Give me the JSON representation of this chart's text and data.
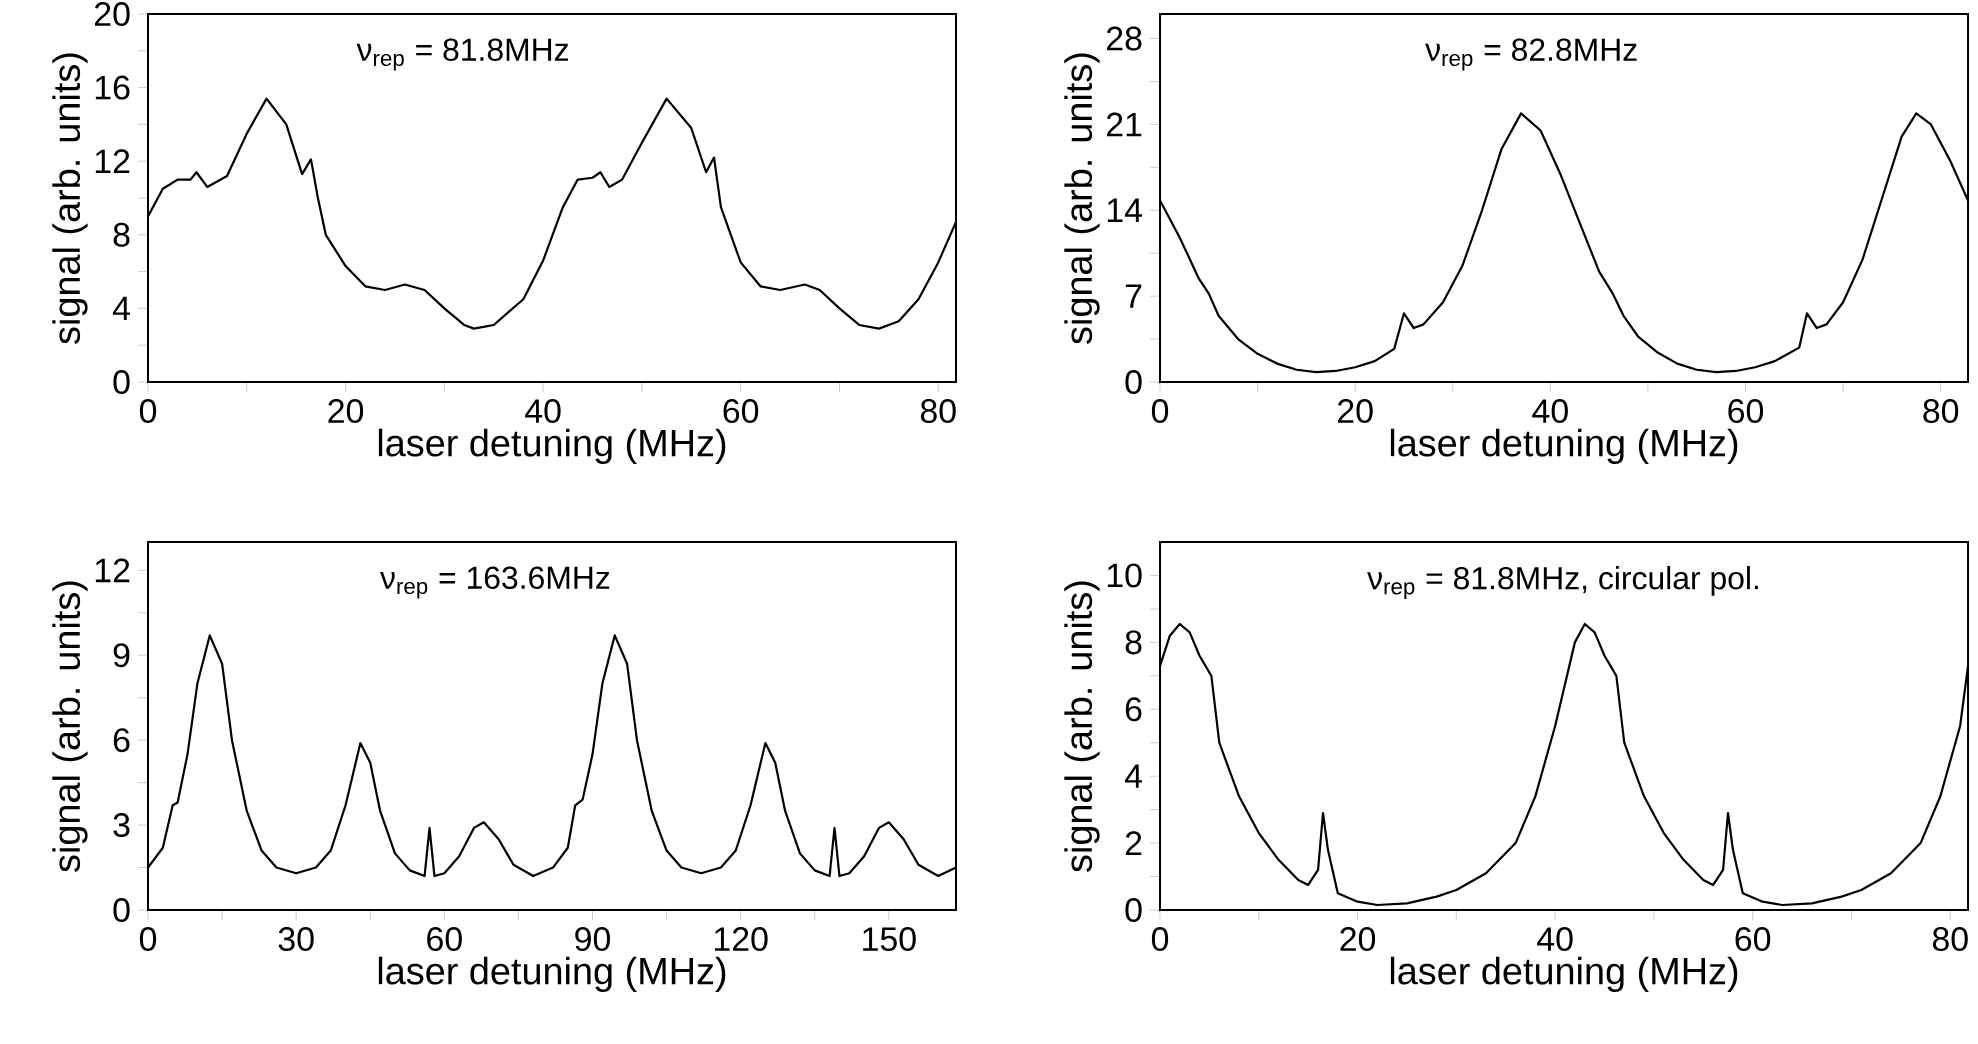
{
  "chart_data": [
    {
      "type": "line",
      "xlabel": "laser detuning (MHz)",
      "ylabel": "signal (arb. units)",
      "annotations": [
        "ν$_{rep}$ = 81.8MHz"
      ],
      "xlim": [
        0,
        81.8
      ],
      "ylim": [
        0,
        20
      ],
      "xticks": [
        0,
        {
          "value": 10,
          "label": null
        },
        20,
        {
          "value": 30,
          "label": null
        },
        40,
        {
          "value": 50,
          "label": null
        },
        60,
        {
          "value": 70,
          "label": null
        },
        80
      ],
      "yticks": [
        0,
        {
          "value": 2,
          "label": null
        },
        4,
        {
          "value": 6,
          "label": null
        },
        8,
        {
          "value": 10,
          "label": null
        },
        12,
        {
          "value": 14,
          "label": null
        },
        16,
        {
          "value": 18,
          "label": null
        },
        20
      ],
      "series": [
        {
          "color": "#000000",
          "x": [
            0,
            1.5,
            3,
            4.3,
            4.9,
            6,
            8,
            10,
            12,
            14,
            15.6,
            16.5,
            17.2,
            18,
            20,
            22,
            24,
            26,
            28,
            30,
            32,
            33,
            35,
            38,
            40,
            42,
            43.5,
            45,
            45.8,
            46.7,
            48,
            50,
            52.5,
            55,
            56.5,
            57.3,
            58,
            60,
            62,
            64,
            66.5,
            68,
            70,
            72,
            74,
            76,
            78,
            80,
            81.8
          ],
          "values": [
            9.0,
            10.5,
            11.0,
            11.0,
            11.4,
            10.6,
            11.2,
            13.5,
            15.4,
            14.0,
            11.3,
            12.1,
            10.0,
            8.0,
            6.3,
            5.2,
            5.0,
            5.3,
            5.0,
            4.0,
            3.1,
            2.9,
            3.1,
            4.5,
            6.6,
            9.5,
            11.0,
            11.1,
            11.4,
            10.6,
            11.0,
            13.0,
            15.4,
            13.8,
            11.4,
            12.2,
            9.5,
            6.5,
            5.2,
            5.0,
            5.3,
            5.0,
            4.0,
            3.1,
            2.9,
            3.3,
            4.5,
            6.5,
            8.7
          ]
        }
      ]
    },
    {
      "type": "line",
      "xlabel": "laser detuning (MHz)",
      "ylabel": "signal (arb. units)",
      "annotations": [
        "ν$_{rep}$ = 82.8MHz"
      ],
      "xlim": [
        0,
        82.8
      ],
      "ylim": [
        0,
        30
      ],
      "xticks": [
        0,
        {
          "value": 10,
          "label": null
        },
        20,
        {
          "value": 30,
          "label": null
        },
        40,
        {
          "value": 50,
          "label": null
        },
        60,
        {
          "value": 70,
          "label": null
        },
        80
      ],
      "yticks": [
        0,
        {
          "value": 3.5,
          "label": null
        },
        7,
        {
          "value": 10.5,
          "label": null
        },
        14,
        {
          "value": 17.5,
          "label": null
        },
        21,
        {
          "value": 24.5,
          "label": null
        },
        28
      ],
      "series": [
        {
          "color": "#000000",
          "x": [
            0,
            2,
            4,
            5,
            6,
            8,
            10,
            12,
            14,
            16,
            18,
            20,
            22,
            24,
            25,
            26,
            27,
            29,
            31,
            33,
            35,
            37,
            39,
            41,
            43,
            45,
            46.4,
            47.5,
            49,
            51,
            53,
            55,
            57,
            59,
            61,
            63,
            65.5,
            66.3,
            67.3,
            68.3,
            70,
            72,
            74,
            76,
            77.5,
            79,
            81,
            82.8
          ],
          "values": [
            14.8,
            11.8,
            8.4,
            7.2,
            5.4,
            3.5,
            2.3,
            1.5,
            1.0,
            0.8,
            0.9,
            1.2,
            1.7,
            2.7,
            5.6,
            4.4,
            4.7,
            6.5,
            9.5,
            14.0,
            19.0,
            21.9,
            20.5,
            17.0,
            13.0,
            9.0,
            7.2,
            5.4,
            3.7,
            2.4,
            1.5,
            1.0,
            0.8,
            0.9,
            1.2,
            1.7,
            2.8,
            5.6,
            4.4,
            4.7,
            6.5,
            10.0,
            15.0,
            20.0,
            21.9,
            21.0,
            18.0,
            14.8
          ]
        }
      ]
    },
    {
      "type": "line",
      "xlabel": "laser detuning (MHz)",
      "ylabel": "signal (arb. units)",
      "annotations": [
        "ν$_{rep}$ = 163.6MHz"
      ],
      "xlim": [
        0,
        163.6
      ],
      "ylim": [
        0,
        13
      ],
      "xticks": [
        0,
        {
          "value": 15,
          "label": null
        },
        30,
        {
          "value": 45,
          "label": null
        },
        60,
        {
          "value": 75,
          "label": null
        },
        90,
        {
          "value": 105,
          "label": null
        },
        120,
        {
          "value": 135,
          "label": null
        },
        150
      ],
      "yticks": [
        0,
        {
          "value": 1.5,
          "label": null
        },
        3,
        {
          "value": 4.5,
          "label": null
        },
        6,
        {
          "value": 7.5,
          "label": null
        },
        9,
        {
          "value": 10.5,
          "label": null
        },
        12
      ],
      "series": [
        {
          "color": "#000000",
          "x": [
            0,
            3,
            5,
            6,
            8,
            10,
            12.5,
            15,
            17,
            20,
            23,
            26,
            30,
            34,
            37,
            40,
            43,
            45,
            47,
            50,
            53,
            56,
            57,
            58,
            60,
            63,
            66,
            68,
            71,
            74,
            78,
            82,
            85,
            86.5,
            88,
            90,
            92,
            94.5,
            97,
            99,
            102,
            105,
            108,
            112,
            116,
            119,
            122,
            125,
            127,
            129,
            132,
            135,
            138,
            139,
            140,
            142,
            145,
            148,
            150,
            153,
            156,
            160,
            163.6
          ],
          "values": [
            1.5,
            2.2,
            3.7,
            3.8,
            5.5,
            8.0,
            9.7,
            8.7,
            6.0,
            3.5,
            2.1,
            1.5,
            1.3,
            1.5,
            2.1,
            3.7,
            5.9,
            5.2,
            3.5,
            2.0,
            1.4,
            1.2,
            2.9,
            1.2,
            1.3,
            1.9,
            2.9,
            3.1,
            2.5,
            1.6,
            1.2,
            1.5,
            2.2,
            3.7,
            3.9,
            5.5,
            8.0,
            9.7,
            8.7,
            6.0,
            3.5,
            2.1,
            1.5,
            1.3,
            1.5,
            2.1,
            3.7,
            5.9,
            5.2,
            3.5,
            2.0,
            1.4,
            1.2,
            2.9,
            1.2,
            1.3,
            1.9,
            2.9,
            3.1,
            2.5,
            1.6,
            1.2,
            1.5
          ]
        }
      ]
    },
    {
      "type": "line",
      "xlabel": "laser detuning (MHz)",
      "ylabel": "signal (arb. units)",
      "annotations": [
        "ν$_{rep}$ = 81.8MHz, circular pol."
      ],
      "xlim": [
        0,
        81.8
      ],
      "ylim": [
        0,
        11
      ],
      "xticks": [
        0,
        {
          "value": 10,
          "label": null
        },
        20,
        {
          "value": 30,
          "label": null
        },
        40,
        {
          "value": 50,
          "label": null
        },
        60,
        {
          "value": 70,
          "label": null
        },
        80
      ],
      "yticks": [
        0,
        {
          "value": 1,
          "label": null
        },
        2,
        {
          "value": 3,
          "label": null
        },
        4,
        {
          "value": 5,
          "label": null
        },
        6,
        {
          "value": 7,
          "label": null
        },
        8,
        {
          "value": 9,
          "label": null
        },
        10
      ],
      "series": [
        {
          "color": "#000000",
          "x": [
            0,
            1,
            2,
            3,
            4,
            5.2,
            5.6,
            6,
            8,
            10,
            12,
            14,
            15,
            16,
            16.5,
            17,
            18,
            20,
            22,
            25,
            28,
            30,
            33,
            36,
            38,
            40,
            42,
            43,
            44,
            45,
            46.2,
            46.6,
            47,
            49,
            51,
            53,
            55,
            56,
            57,
            57.5,
            58,
            59,
            61,
            63,
            66,
            69,
            71,
            74,
            77,
            79,
            81,
            81.8
          ],
          "values": [
            7.3,
            8.2,
            8.55,
            8.3,
            7.6,
            7.0,
            6.0,
            5.0,
            3.4,
            2.3,
            1.5,
            0.9,
            0.75,
            1.2,
            2.9,
            1.8,
            0.5,
            0.25,
            0.15,
            0.2,
            0.4,
            0.6,
            1.1,
            2.0,
            3.4,
            5.5,
            8.0,
            8.55,
            8.3,
            7.6,
            7.0,
            6.0,
            5.0,
            3.4,
            2.3,
            1.5,
            0.9,
            0.75,
            1.2,
            2.9,
            1.8,
            0.5,
            0.25,
            0.15,
            0.2,
            0.4,
            0.6,
            1.1,
            2.0,
            3.4,
            5.5,
            7.3
          ]
        }
      ]
    }
  ]
}
